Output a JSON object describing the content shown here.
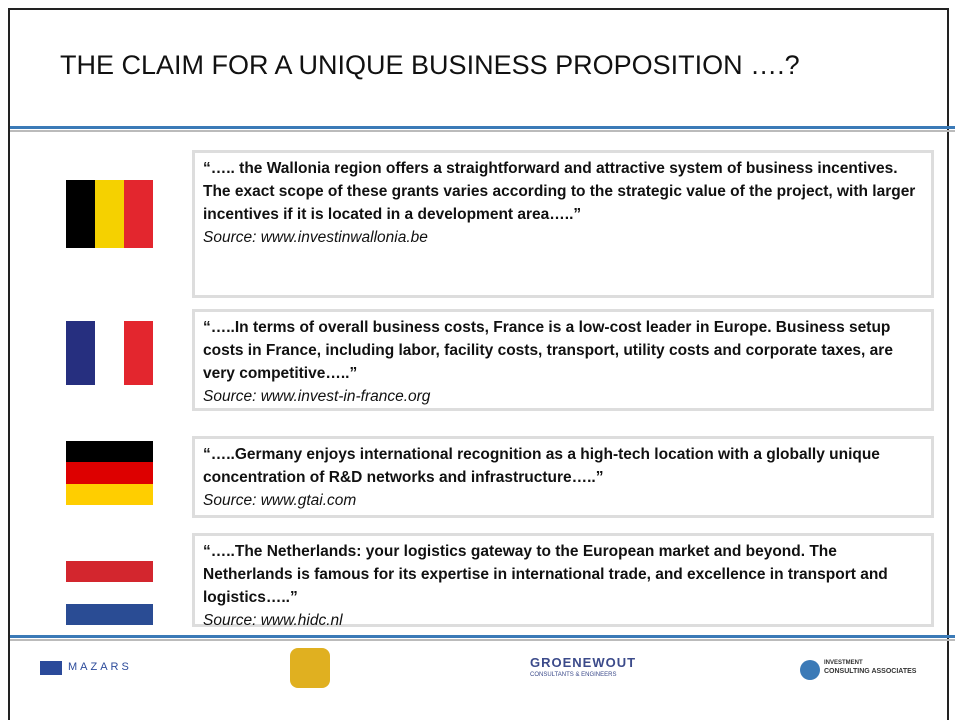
{
  "header": {
    "title": "THE CLAIM FOR A UNIQUE BUSINESS PROPOSITION ….?"
  },
  "quotes": [
    {
      "text": "“….. the Wallonia region offers a straightforward and attractive system of business incentives. The exact scope of these grants varies according to the strategic value of the project, with larger incentives if it is located in a development area…..”",
      "source": "Source: www.investinwallonia.be"
    },
    {
      "text": "“…..In terms of overall business costs, France is a low-cost leader in Europe. Business setup costs in France, including labor, facility costs, transport, utility costs and corporate taxes, are very competitive…..”",
      "source": "Source: www.invest-in-france.org"
    },
    {
      "text": "“…..Germany enjoys international recognition as a high-tech location with a globally unique concentration of R&D networks and infrastructure…..”",
      "source": "Source: www.gtai.com"
    },
    {
      "text": "“…..The Netherlands: your logistics gateway to the European market and beyond. The Netherlands is famous for its expertise in international trade, and excellence in transport and logistics…..”",
      "source": "Source: www.hidc.nl"
    }
  ],
  "footer": {
    "mazars": "MAZARS",
    "groenewout": "GROENEWOUT",
    "groenewout_sub": "CONSULTANTS & ENGINEERS",
    "ica_top": "INVESTMENT",
    "ica_bottom": "CONSULTING ASSOCIATES"
  }
}
